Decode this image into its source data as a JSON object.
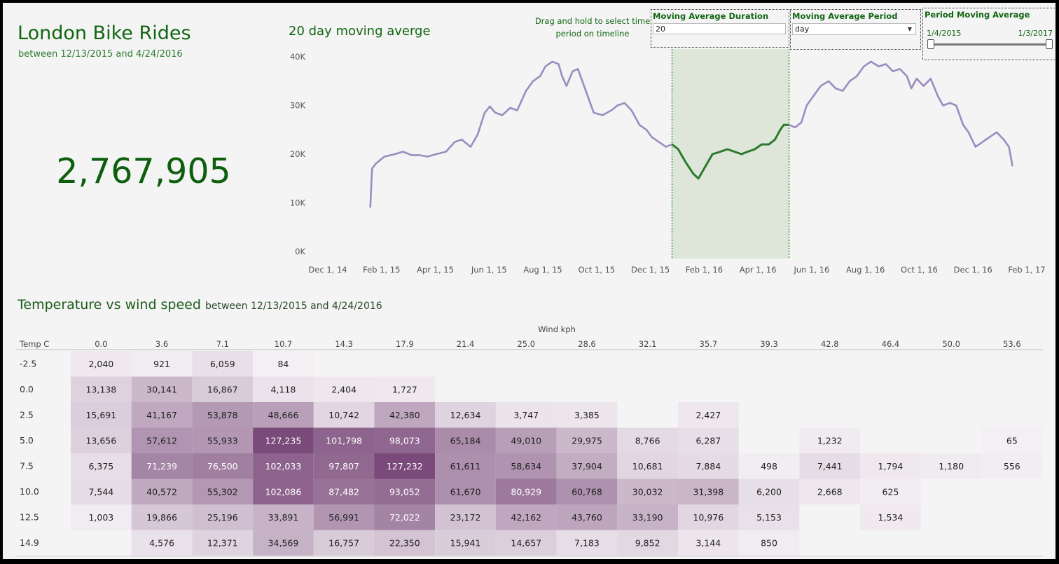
{
  "header": {
    "title": "London Bike Rides",
    "subtitle": "between 12/13/2015 and 4/24/2016"
  },
  "kpi": {
    "total_rides": "2,767,905"
  },
  "controls": {
    "drag_hint": "Drag and hold to select time period on timeline",
    "duration": {
      "label": "Moving Average Duration",
      "value": "20"
    },
    "period": {
      "label": "Moving Average Period",
      "value": "day"
    },
    "range": {
      "label": "Period Moving Average",
      "start": "1/4/2015",
      "end": "1/3/2017"
    }
  },
  "colors": {
    "line": "#9b8cc0",
    "line_selected": "#2d7a2d",
    "selection_fill": "#dde6d8",
    "selection_border": "#2ea62e",
    "heat_high": "#7a4a7a",
    "heat_low": "#f4f0f4"
  },
  "chart_data": [
    {
      "type": "line",
      "title": "20 day moving averge",
      "x_tick_labels": [
        "Dec 1, 14",
        "Feb 1, 15",
        "Apr 1, 15",
        "Jun 1, 15",
        "Aug 1, 15",
        "Oct 1, 15",
        "Dec 1, 15",
        "Feb 1, 16",
        "Apr 1, 16",
        "Jun 1, 16",
        "Aug 1, 16",
        "Oct 1, 16",
        "Dec 1, 16",
        "Feb 1, 17"
      ],
      "y_tick_labels": [
        "0K",
        "10K",
        "20K",
        "30K",
        "40K"
      ],
      "ylim": [
        0,
        40000
      ],
      "xlim": [
        "2014-12-01",
        "2017-02-01"
      ],
      "selected_range": [
        "2015-12-13",
        "2016-04-24"
      ],
      "points": [
        [
          "2015-01-04",
          9000
        ],
        [
          "2015-01-06",
          17000
        ],
        [
          "2015-01-10",
          18000
        ],
        [
          "2015-01-20",
          19500
        ],
        [
          "2015-02-01",
          20000
        ],
        [
          "2015-02-10",
          20500
        ],
        [
          "2015-02-20",
          19800
        ],
        [
          "2015-03-01",
          19800
        ],
        [
          "2015-03-10",
          19500
        ],
        [
          "2015-03-20",
          20000
        ],
        [
          "2015-03-31",
          20500
        ],
        [
          "2015-04-10",
          22500
        ],
        [
          "2015-04-18",
          23000
        ],
        [
          "2015-04-28",
          21500
        ],
        [
          "2015-05-06",
          24000
        ],
        [
          "2015-05-14",
          28500
        ],
        [
          "2015-05-20",
          29800
        ],
        [
          "2015-05-26",
          28500
        ],
        [
          "2015-06-03",
          28000
        ],
        [
          "2015-06-12",
          29500
        ],
        [
          "2015-06-20",
          29000
        ],
        [
          "2015-06-30",
          33000
        ],
        [
          "2015-07-08",
          35000
        ],
        [
          "2015-07-16",
          36000
        ],
        [
          "2015-07-22",
          38000
        ],
        [
          "2015-07-30",
          39000
        ],
        [
          "2015-08-06",
          38500
        ],
        [
          "2015-08-10",
          36000
        ],
        [
          "2015-08-15",
          34000
        ],
        [
          "2015-08-22",
          37000
        ],
        [
          "2015-08-28",
          37500
        ],
        [
          "2015-09-04",
          34000
        ],
        [
          "2015-09-10",
          31000
        ],
        [
          "2015-09-15",
          28500
        ],
        [
          "2015-09-25",
          28000
        ],
        [
          "2015-10-05",
          29000
        ],
        [
          "2015-10-12",
          30000
        ],
        [
          "2015-10-20",
          30500
        ],
        [
          "2015-10-28",
          29000
        ],
        [
          "2015-11-06",
          26000
        ],
        [
          "2015-11-14",
          25000
        ],
        [
          "2015-11-20",
          23500
        ],
        [
          "2015-11-28",
          22500
        ],
        [
          "2015-12-06",
          21500
        ],
        [
          "2015-12-13",
          22000
        ],
        [
          "2015-12-20",
          21000
        ],
        [
          "2015-12-28",
          18500
        ],
        [
          "2016-01-06",
          16000
        ],
        [
          "2016-01-12",
          15000
        ],
        [
          "2016-01-20",
          17500
        ],
        [
          "2016-01-28",
          20000
        ],
        [
          "2016-02-06",
          20500
        ],
        [
          "2016-02-14",
          21000
        ],
        [
          "2016-02-22",
          20500
        ],
        [
          "2016-03-01",
          20000
        ],
        [
          "2016-03-08",
          20500
        ],
        [
          "2016-03-16",
          21000
        ],
        [
          "2016-03-24",
          22000
        ],
        [
          "2016-04-01",
          22000
        ],
        [
          "2016-04-08",
          23000
        ],
        [
          "2016-04-14",
          25000
        ],
        [
          "2016-04-18",
          26000
        ],
        [
          "2016-04-24",
          26000
        ],
        [
          "2016-05-01",
          25500
        ],
        [
          "2016-05-08",
          26500
        ],
        [
          "2016-05-14",
          30000
        ],
        [
          "2016-05-22",
          32000
        ],
        [
          "2016-05-30",
          34000
        ],
        [
          "2016-06-08",
          35000
        ],
        [
          "2016-06-16",
          33500
        ],
        [
          "2016-06-24",
          33000
        ],
        [
          "2016-07-02",
          35000
        ],
        [
          "2016-07-10",
          36000
        ],
        [
          "2016-07-18",
          38000
        ],
        [
          "2016-07-26",
          39000
        ],
        [
          "2016-08-04",
          38000
        ],
        [
          "2016-08-12",
          38500
        ],
        [
          "2016-08-20",
          37000
        ],
        [
          "2016-08-28",
          37500
        ],
        [
          "2016-09-05",
          36000
        ],
        [
          "2016-09-10",
          33500
        ],
        [
          "2016-09-16",
          35500
        ],
        [
          "2016-09-24",
          34000
        ],
        [
          "2016-10-02",
          35500
        ],
        [
          "2016-10-10",
          32000
        ],
        [
          "2016-10-16",
          30000
        ],
        [
          "2016-10-24",
          30500
        ],
        [
          "2016-10-31",
          30000
        ],
        [
          "2016-11-08",
          26000
        ],
        [
          "2016-11-14",
          24500
        ],
        [
          "2016-11-22",
          21500
        ],
        [
          "2016-11-30",
          22500
        ],
        [
          "2016-12-08",
          23500
        ],
        [
          "2016-12-16",
          24500
        ],
        [
          "2016-12-24",
          23000
        ],
        [
          "2016-12-30",
          21500
        ],
        [
          "2017-01-03",
          17500
        ]
      ]
    },
    {
      "type": "heatmap",
      "title": "Temperature vs wind speed",
      "subtitle": "between 12/13/2015 and 4/24/2016",
      "xlabel": "Wind kph",
      "ylabel": "Temp C",
      "x": [
        "0.0",
        "3.6",
        "7.1",
        "10.7",
        "14.3",
        "17.9",
        "21.4",
        "25.0",
        "28.6",
        "32.1",
        "35.7",
        "39.3",
        "42.8",
        "46.4",
        "50.0",
        "53.6"
      ],
      "y": [
        "-2.5",
        "0.0",
        "2.5",
        "5.0",
        "7.5",
        "10.0",
        "12.5",
        "14.9"
      ],
      "values": [
        [
          2040,
          921,
          6059,
          84,
          null,
          null,
          null,
          null,
          null,
          null,
          null,
          null,
          null,
          null,
          null,
          null
        ],
        [
          13138,
          30141,
          16867,
          4118,
          2404,
          1727,
          null,
          null,
          null,
          null,
          null,
          null,
          null,
          null,
          null,
          null
        ],
        [
          15691,
          41167,
          53878,
          48666,
          10742,
          42380,
          12634,
          3747,
          3385,
          null,
          2427,
          null,
          null,
          null,
          null,
          null
        ],
        [
          13656,
          57612,
          55933,
          127235,
          101798,
          98073,
          65184,
          49010,
          29975,
          8766,
          6287,
          null,
          1232,
          null,
          null,
          65
        ],
        [
          6375,
          71239,
          76500,
          102033,
          97807,
          127232,
          61611,
          58634,
          37904,
          10681,
          7884,
          498,
          7441,
          1794,
          1180,
          556
        ],
        [
          7544,
          40572,
          55302,
          102086,
          87482,
          93052,
          61670,
          80929,
          60768,
          30032,
          31398,
          6200,
          2668,
          625,
          null,
          null
        ],
        [
          1003,
          19866,
          25196,
          33891,
          56991,
          72022,
          23172,
          42162,
          43760,
          33190,
          10976,
          5153,
          null,
          1534,
          null,
          null
        ],
        [
          null,
          4576,
          12371,
          34569,
          16757,
          22350,
          15941,
          14657,
          7183,
          9852,
          3144,
          850,
          null,
          null,
          null,
          null
        ]
      ],
      "labels": [
        [
          "2,040",
          "921",
          "6,059",
          "84",
          "",
          "",
          "",
          "",
          "",
          "",
          "",
          "",
          "",
          "",
          "",
          ""
        ],
        [
          "13,138",
          "30,141",
          "16,867",
          "4,118",
          "2,404",
          "1,727",
          "",
          "",
          "",
          "",
          "",
          "",
          "",
          "",
          "",
          ""
        ],
        [
          "15,691",
          "41,167",
          "53,878",
          "48,666",
          "10,742",
          "42,380",
          "12,634",
          "3,747",
          "3,385",
          "",
          "2,427",
          "",
          "",
          "",
          "",
          ""
        ],
        [
          "13,656",
          "57,612",
          "55,933",
          "127,235",
          "101,798",
          "98,073",
          "65,184",
          "49,010",
          "29,975",
          "8,766",
          "6,287",
          "",
          "1,232",
          "",
          "",
          "65"
        ],
        [
          "6,375",
          "71,239",
          "76,500",
          "102,033",
          "97,807",
          "127,232",
          "61,611",
          "58,634",
          "37,904",
          "10,681",
          "7,884",
          "498",
          "7,441",
          "1,794",
          "1,180",
          "556"
        ],
        [
          "7,544",
          "40,572",
          "55,302",
          "102,086",
          "87,482",
          "93,052",
          "61,670",
          "80,929",
          "60,768",
          "30,032",
          "31,398",
          "6,200",
          "2,668",
          "625",
          "",
          ""
        ],
        [
          "1,003",
          "19,866",
          "25,196",
          "33,891",
          "56,991",
          "72,022",
          "23,172",
          "42,162",
          "43,760",
          "33,190",
          "10,976",
          "5,153",
          "",
          "1,534",
          "",
          ""
        ],
        [
          "",
          "4,576",
          "12,371",
          "34,569",
          "16,757",
          "22,350",
          "15,941",
          "14,657",
          "7,183",
          "9,852",
          "3,144",
          "850",
          "",
          "",
          "",
          ""
        ]
      ]
    }
  ]
}
